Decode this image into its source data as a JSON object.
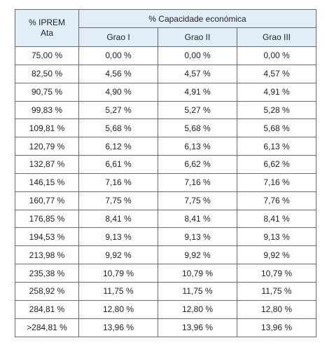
{
  "table": {
    "header": {
      "iprem_line1": "% IPREM",
      "iprem_line2": "Ata",
      "group": "% Capacidade económica",
      "grades": [
        "Grao I",
        "Grao II",
        "Grao III"
      ]
    },
    "rows": [
      {
        "iprem": "75,00 %",
        "g1": "0,00 %",
        "g2": "0,00 %",
        "g3": "0,00 %"
      },
      {
        "iprem": "82,50 %",
        "g1": "4,56 %",
        "g2": "4,57 %",
        "g3": "4,57 %"
      },
      {
        "iprem": "90,75 %",
        "g1": "4,90 %",
        "g2": "4,91 %",
        "g3": "4,91 %"
      },
      {
        "iprem": "99,83 %",
        "g1": "5,27 %",
        "g2": "5,27 %",
        "g3": "5,28 %"
      },
      {
        "iprem": "109,81 %",
        "g1": "5,68 %",
        "g2": "5,68 %",
        "g3": "5,68 %"
      },
      {
        "iprem": "120,79 %",
        "g1": "6,12 %",
        "g2": "6,13 %",
        "g3": "6,13 %"
      },
      {
        "iprem": "132,87 %",
        "g1": "6,61 %",
        "g2": "6,62 %",
        "g3": "6,62 %"
      },
      {
        "iprem": "146,15 %",
        "g1": "7,16 %",
        "g2": "7,16 %",
        "g3": "7,16 %"
      },
      {
        "iprem": "160,77 %",
        "g1": "7,75 %",
        "g2": "7,75 %",
        "g3": "7,76 %"
      },
      {
        "iprem": "176,85 %",
        "g1": "8,41 %",
        "g2": "8,41 %",
        "g3": "8,41 %"
      },
      {
        "iprem": "194,53 %",
        "g1": "9,13 %",
        "g2": "9,13 %",
        "g3": "9,13 %"
      },
      {
        "iprem": "213,98 %",
        "g1": "9,92 %",
        "g2": "9,92 %",
        "g3": "9,92 %"
      },
      {
        "iprem": "235,38 %",
        "g1": "10,79 %",
        "g2": "10,79 %",
        "g3": "10,79 %"
      },
      {
        "iprem": "258,92 %",
        "g1": "11,75 %",
        "g2": "11,75 %",
        "g3": "11,75 %"
      },
      {
        "iprem": "284,81 %",
        "g1": "12,80 %",
        "g2": "12,80 %",
        "g3": "12,80 %"
      },
      {
        "iprem": ">284,81 %",
        "g1": "13,96 %",
        "g2": "13,96 %",
        "g3": "13,96 %"
      }
    ]
  },
  "colors": {
    "header_background": "#e2eef7",
    "border": "#6a6a6a",
    "text": "#222222"
  }
}
